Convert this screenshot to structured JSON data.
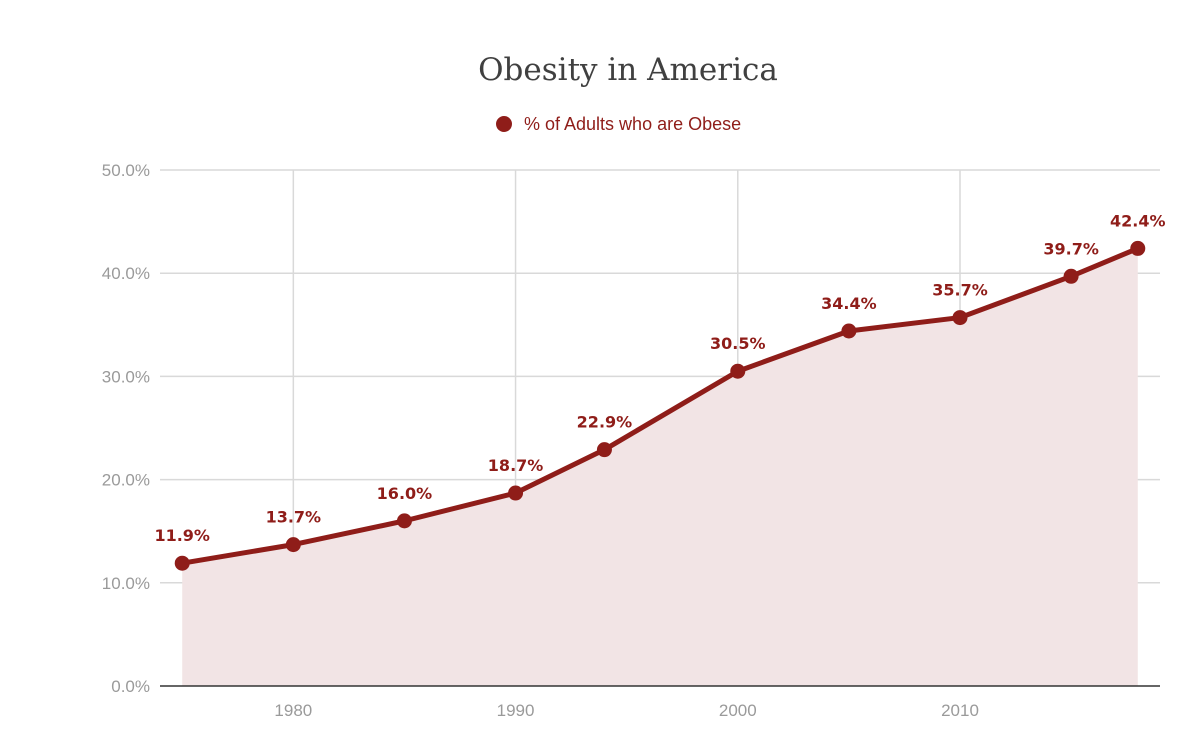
{
  "chart_data": {
    "type": "line",
    "title": "Obesity in America",
    "legend": {
      "label": "% of Adults who are Obese",
      "position": "top-center"
    },
    "series": [
      {
        "name": "% of Adults who are Obese",
        "x": [
          1975,
          1980,
          1985,
          1990,
          1994,
          2000,
          2005,
          2010,
          2015,
          2018
        ],
        "values": [
          11.9,
          13.7,
          16.0,
          18.7,
          22.9,
          30.5,
          34.4,
          35.7,
          39.7,
          42.4
        ],
        "labels": [
          "11.9%",
          "13.7%",
          "16.0%",
          "18.7%",
          "22.9%",
          "30.5%",
          "34.4%",
          "35.7%",
          "39.7%",
          "42.4%"
        ]
      }
    ],
    "xlabel": "",
    "ylabel": "",
    "xlim": [
      1974,
      2019
    ],
    "ylim": [
      0,
      50
    ],
    "x_ticks": [
      1980,
      1990,
      2000,
      2010
    ],
    "x_tick_labels": [
      "1980",
      "1990",
      "2000",
      "2010"
    ],
    "y_ticks": [
      0,
      10,
      20,
      30,
      40,
      50
    ],
    "y_tick_labels": [
      "0.0%",
      "10.0%",
      "20.0%",
      "30.0%",
      "40.0%",
      "50.0%"
    ],
    "grid": true,
    "area_fill": true
  },
  "colors": {
    "series": "#8f1d19",
    "area_fill": "#f2e4e5",
    "grid": "#d9d9d9",
    "axis": "#333333",
    "title": "#404040",
    "tick": "#9a9a9a"
  }
}
